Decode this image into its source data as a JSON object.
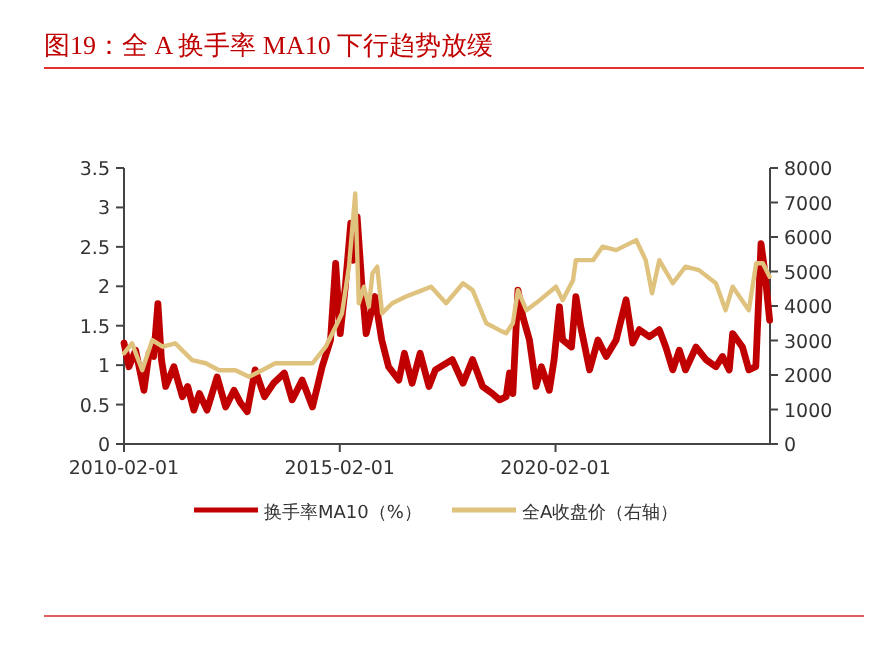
{
  "chart_data": {
    "type": "line",
    "title": "图19：全 A 换手率 MA10 下行趋势放缓",
    "xlim": [
      "2010-02-01",
      "2025-01-20"
    ],
    "xticks": [
      "2010-02-01",
      "2015-02-01",
      "2020-02-01"
    ],
    "ylim": [
      0,
      3.5
    ],
    "yticks": [
      0,
      0.5,
      1,
      1.5,
      2,
      2.5,
      3,
      3.5
    ],
    "y2lim": [
      0,
      8000
    ],
    "y2ticks": [
      0,
      1000,
      2000,
      3000,
      4000,
      5000,
      6000,
      7000,
      8000
    ],
    "legend": "bottom",
    "series": [
      {
        "name": "换手率MA10（%）",
        "color": "#c00000",
        "x": [
          "2010-02-01",
          "2010-03-15",
          "2010-05-10",
          "2010-07-20",
          "2010-09-01",
          "2010-10-10",
          "2010-11-15",
          "2010-12-15",
          "2011-01-20",
          "2011-03-30",
          "2011-06-10",
          "2011-07-25",
          "2011-09-15",
          "2011-11-01",
          "2012-01-05",
          "2012-03-30",
          "2012-06-10",
          "2012-08-20",
          "2012-10-15",
          "2012-12-10",
          "2013-02-15",
          "2013-05-05",
          "2013-07-20",
          "2013-10-20",
          "2013-12-25",
          "2014-03-20",
          "2014-06-15",
          "2014-09-05",
          "2014-11-15",
          "2014-12-28",
          "2015-02-05",
          "2015-03-20",
          "2015-05-05",
          "2015-05-25",
          "2015-06-28",
          "2015-08-08",
          "2015-09-12",
          "2015-11-25",
          "2016-01-22",
          "2016-03-20",
          "2016-06-15",
          "2016-08-01",
          "2016-10-05",
          "2016-12-12",
          "2017-02-25",
          "2017-04-20",
          "2017-09-10",
          "2017-12-10",
          "2018-03-01",
          "2018-05-25",
          "2018-08-15",
          "2018-10-15",
          "2018-12-10",
          "2019-01-08",
          "2019-02-05",
          "2019-03-20",
          "2019-05-01",
          "2019-06-25",
          "2019-08-20",
          "2019-10-05",
          "2019-12-10",
          "2020-01-20",
          "2020-03-05",
          "2020-04-01",
          "2020-06-15",
          "2020-07-22",
          "2020-09-01",
          "2020-11-15",
          "2021-01-25",
          "2021-04-05",
          "2021-06-28",
          "2021-09-20",
          "2021-11-15",
          "2022-01-10",
          "2022-04-05",
          "2022-06-28",
          "2022-08-22",
          "2022-10-20",
          "2022-12-15",
          "2023-02-05",
          "2023-05-05",
          "2023-07-28",
          "2023-10-20",
          "2023-12-15",
          "2024-02-10",
          "2024-03-10",
          "2024-06-01",
          "2024-07-25",
          "2024-09-22",
          "2024-11-05",
          "2024-12-05",
          "2025-01-17"
        ],
        "values": [
          1.28,
          0.98,
          1.19,
          0.68,
          1.15,
          1.11,
          1.78,
          1.07,
          0.73,
          0.98,
          0.6,
          0.73,
          0.43,
          0.64,
          0.43,
          0.85,
          0.47,
          0.68,
          0.52,
          0.41,
          0.94,
          0.6,
          0.77,
          0.9,
          0.56,
          0.81,
          0.47,
          0.98,
          1.32,
          2.29,
          1.4,
          2.0,
          2.8,
          2.33,
          2.88,
          2.0,
          1.4,
          1.87,
          1.32,
          0.98,
          0.81,
          1.15,
          0.77,
          1.15,
          0.73,
          0.94,
          1.07,
          0.77,
          1.07,
          0.73,
          0.64,
          0.56,
          0.6,
          0.9,
          0.64,
          1.95,
          1.61,
          1.32,
          0.73,
          0.98,
          0.68,
          1.07,
          1.74,
          1.32,
          1.23,
          1.87,
          1.49,
          0.94,
          1.32,
          1.11,
          1.32,
          1.83,
          1.28,
          1.45,
          1.36,
          1.45,
          1.23,
          0.94,
          1.19,
          0.94,
          1.23,
          1.07,
          0.98,
          1.11,
          0.94,
          1.4,
          1.23,
          0.94,
          0.98,
          2.54,
          2.21,
          1.57
        ]
      },
      {
        "name": "全A收盘价（右轴）",
        "color": "#dfc27d",
        "axis": "y2",
        "x": [
          "2010-02-01",
          "2010-04-10",
          "2010-07-05",
          "2010-09-28",
          "2010-12-25",
          "2011-04-10",
          "2011-09-01",
          "2011-12-25",
          "2012-04-15",
          "2012-09-01",
          "2012-12-25",
          "2013-04-15",
          "2013-08-05",
          "2013-12-25",
          "2014-06-15",
          "2014-10-05",
          "2014-12-28",
          "2015-02-20",
          "2015-04-20",
          "2015-06-12",
          "2015-07-12",
          "2015-08-25",
          "2015-10-05",
          "2015-11-05",
          "2015-12-15",
          "2016-01-25",
          "2016-04-20",
          "2016-08-10",
          "2017-01-01",
          "2017-03-15",
          "2017-07-20",
          "2017-12-10",
          "2018-03-01",
          "2018-06-25",
          "2018-10-15",
          "2018-12-10",
          "2019-02-05",
          "2019-03-20",
          "2019-05-30",
          "2019-09-20",
          "2020-02-05",
          "2020-04-01",
          "2020-06-28",
          "2020-07-22",
          "2020-12-15",
          "2021-03-05",
          "2021-06-28",
          "2021-12-15",
          "2022-03-05",
          "2022-04-28",
          "2022-06-28",
          "2022-10-20",
          "2023-02-05",
          "2023-05-30",
          "2023-10-20",
          "2024-01-10",
          "2024-03-10",
          "2024-07-25",
          "2024-09-25",
          "2024-11-20",
          "2025-01-17"
        ],
        "values": [
          2630,
          2920,
          2140,
          3010,
          2820,
          2920,
          2430,
          2340,
          2140,
          2140,
          1950,
          2140,
          2340,
          2340,
          2340,
          2820,
          3400,
          3790,
          5140,
          7260,
          4080,
          4560,
          3980,
          4950,
          5140,
          3790,
          4080,
          4270,
          4460,
          4560,
          4080,
          4660,
          4460,
          3500,
          3300,
          3210,
          3500,
          4460,
          3880,
          4170,
          4560,
          4170,
          4750,
          5330,
          5330,
          5720,
          5620,
          5910,
          5330,
          4370,
          5330,
          4660,
          5140,
          5040,
          4660,
          3880,
          4560,
          3880,
          5240,
          5240,
          4850
        ]
      }
    ]
  }
}
